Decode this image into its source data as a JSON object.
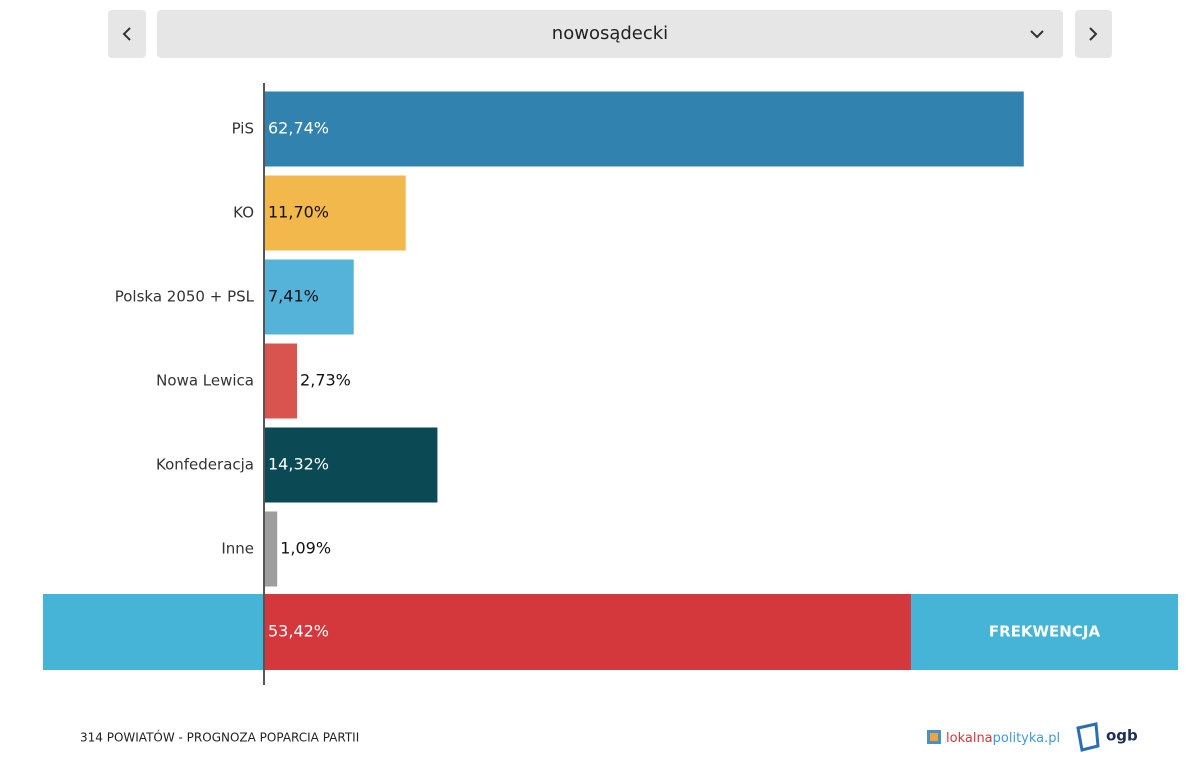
{
  "selector": "nowosądecki",
  "chart_data": {
    "type": "barh",
    "categories": [
      "PiS",
      "KO",
      "Polska 2050 + PSL",
      "Nowa Lewica",
      "Konfederacja",
      "Inne"
    ],
    "values": [
      62.74,
      11.7,
      7.41,
      2.73,
      14.32,
      1.09
    ],
    "value_labels": [
      "62,74%",
      "11,70%",
      "7,41%",
      "2,73%",
      "14,32%",
      "1,09%"
    ],
    "colors": [
      "#3282b0",
      "#f2b84b",
      "#55b2d9",
      "#d9534f",
      "#0b4a55",
      "#9e9e9e"
    ],
    "xlim": [
      0,
      100
    ],
    "turnout": {
      "label": "FREKWENCJA",
      "value": 53.42,
      "value_label": "53,42%",
      "color": "#d4373c"
    }
  },
  "footer": {
    "caption": "314 POWIATÓW - PROGNOZA POPARCIA PARTII",
    "logo": [
      "lokalna",
      "polityka.pl"
    ],
    "logo2": "ogb"
  }
}
